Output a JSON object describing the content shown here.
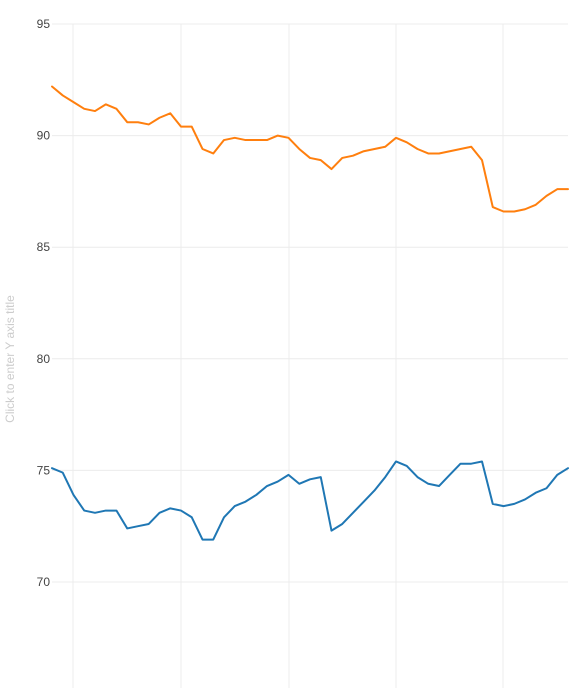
{
  "chart_data": {
    "type": "line",
    "ylabel": "Click to enter Y axis title",
    "ylim": [
      65,
      95
    ],
    "yticks": [
      70,
      75,
      80,
      85,
      90,
      95
    ],
    "x_gridline_count": 5,
    "series": [
      {
        "color": "#ff7f0e",
        "values": [
          92.2,
          91.8,
          91.5,
          91.2,
          91.1,
          91.4,
          91.2,
          90.6,
          90.6,
          90.5,
          90.8,
          91.0,
          90.4,
          90.4,
          89.4,
          89.2,
          89.8,
          89.9,
          89.8,
          89.8,
          89.8,
          90.0,
          89.9,
          89.4,
          89.0,
          88.9,
          88.5,
          89.0,
          89.1,
          89.3,
          89.4,
          89.5,
          89.9,
          89.7,
          89.4,
          89.2,
          89.2,
          89.3,
          89.4,
          89.5,
          88.9,
          86.8,
          86.6,
          86.6,
          86.7,
          86.9,
          87.3,
          87.6,
          87.6
        ]
      },
      {
        "color": "#1f77b4",
        "values": [
          75.1,
          74.9,
          73.9,
          73.2,
          73.1,
          73.2,
          73.2,
          72.4,
          72.5,
          72.6,
          73.1,
          73.3,
          73.2,
          72.9,
          71.9,
          71.9,
          72.9,
          73.4,
          73.6,
          73.9,
          74.3,
          74.5,
          74.8,
          74.4,
          74.6,
          74.7,
          72.3,
          72.6,
          73.1,
          73.6,
          74.1,
          74.7,
          75.4,
          75.2,
          74.7,
          74.4,
          74.3,
          74.8,
          75.3,
          75.3,
          75.4,
          73.5,
          73.4,
          73.5,
          73.7,
          74.0,
          74.2,
          74.8,
          75.1
        ]
      }
    ]
  }
}
